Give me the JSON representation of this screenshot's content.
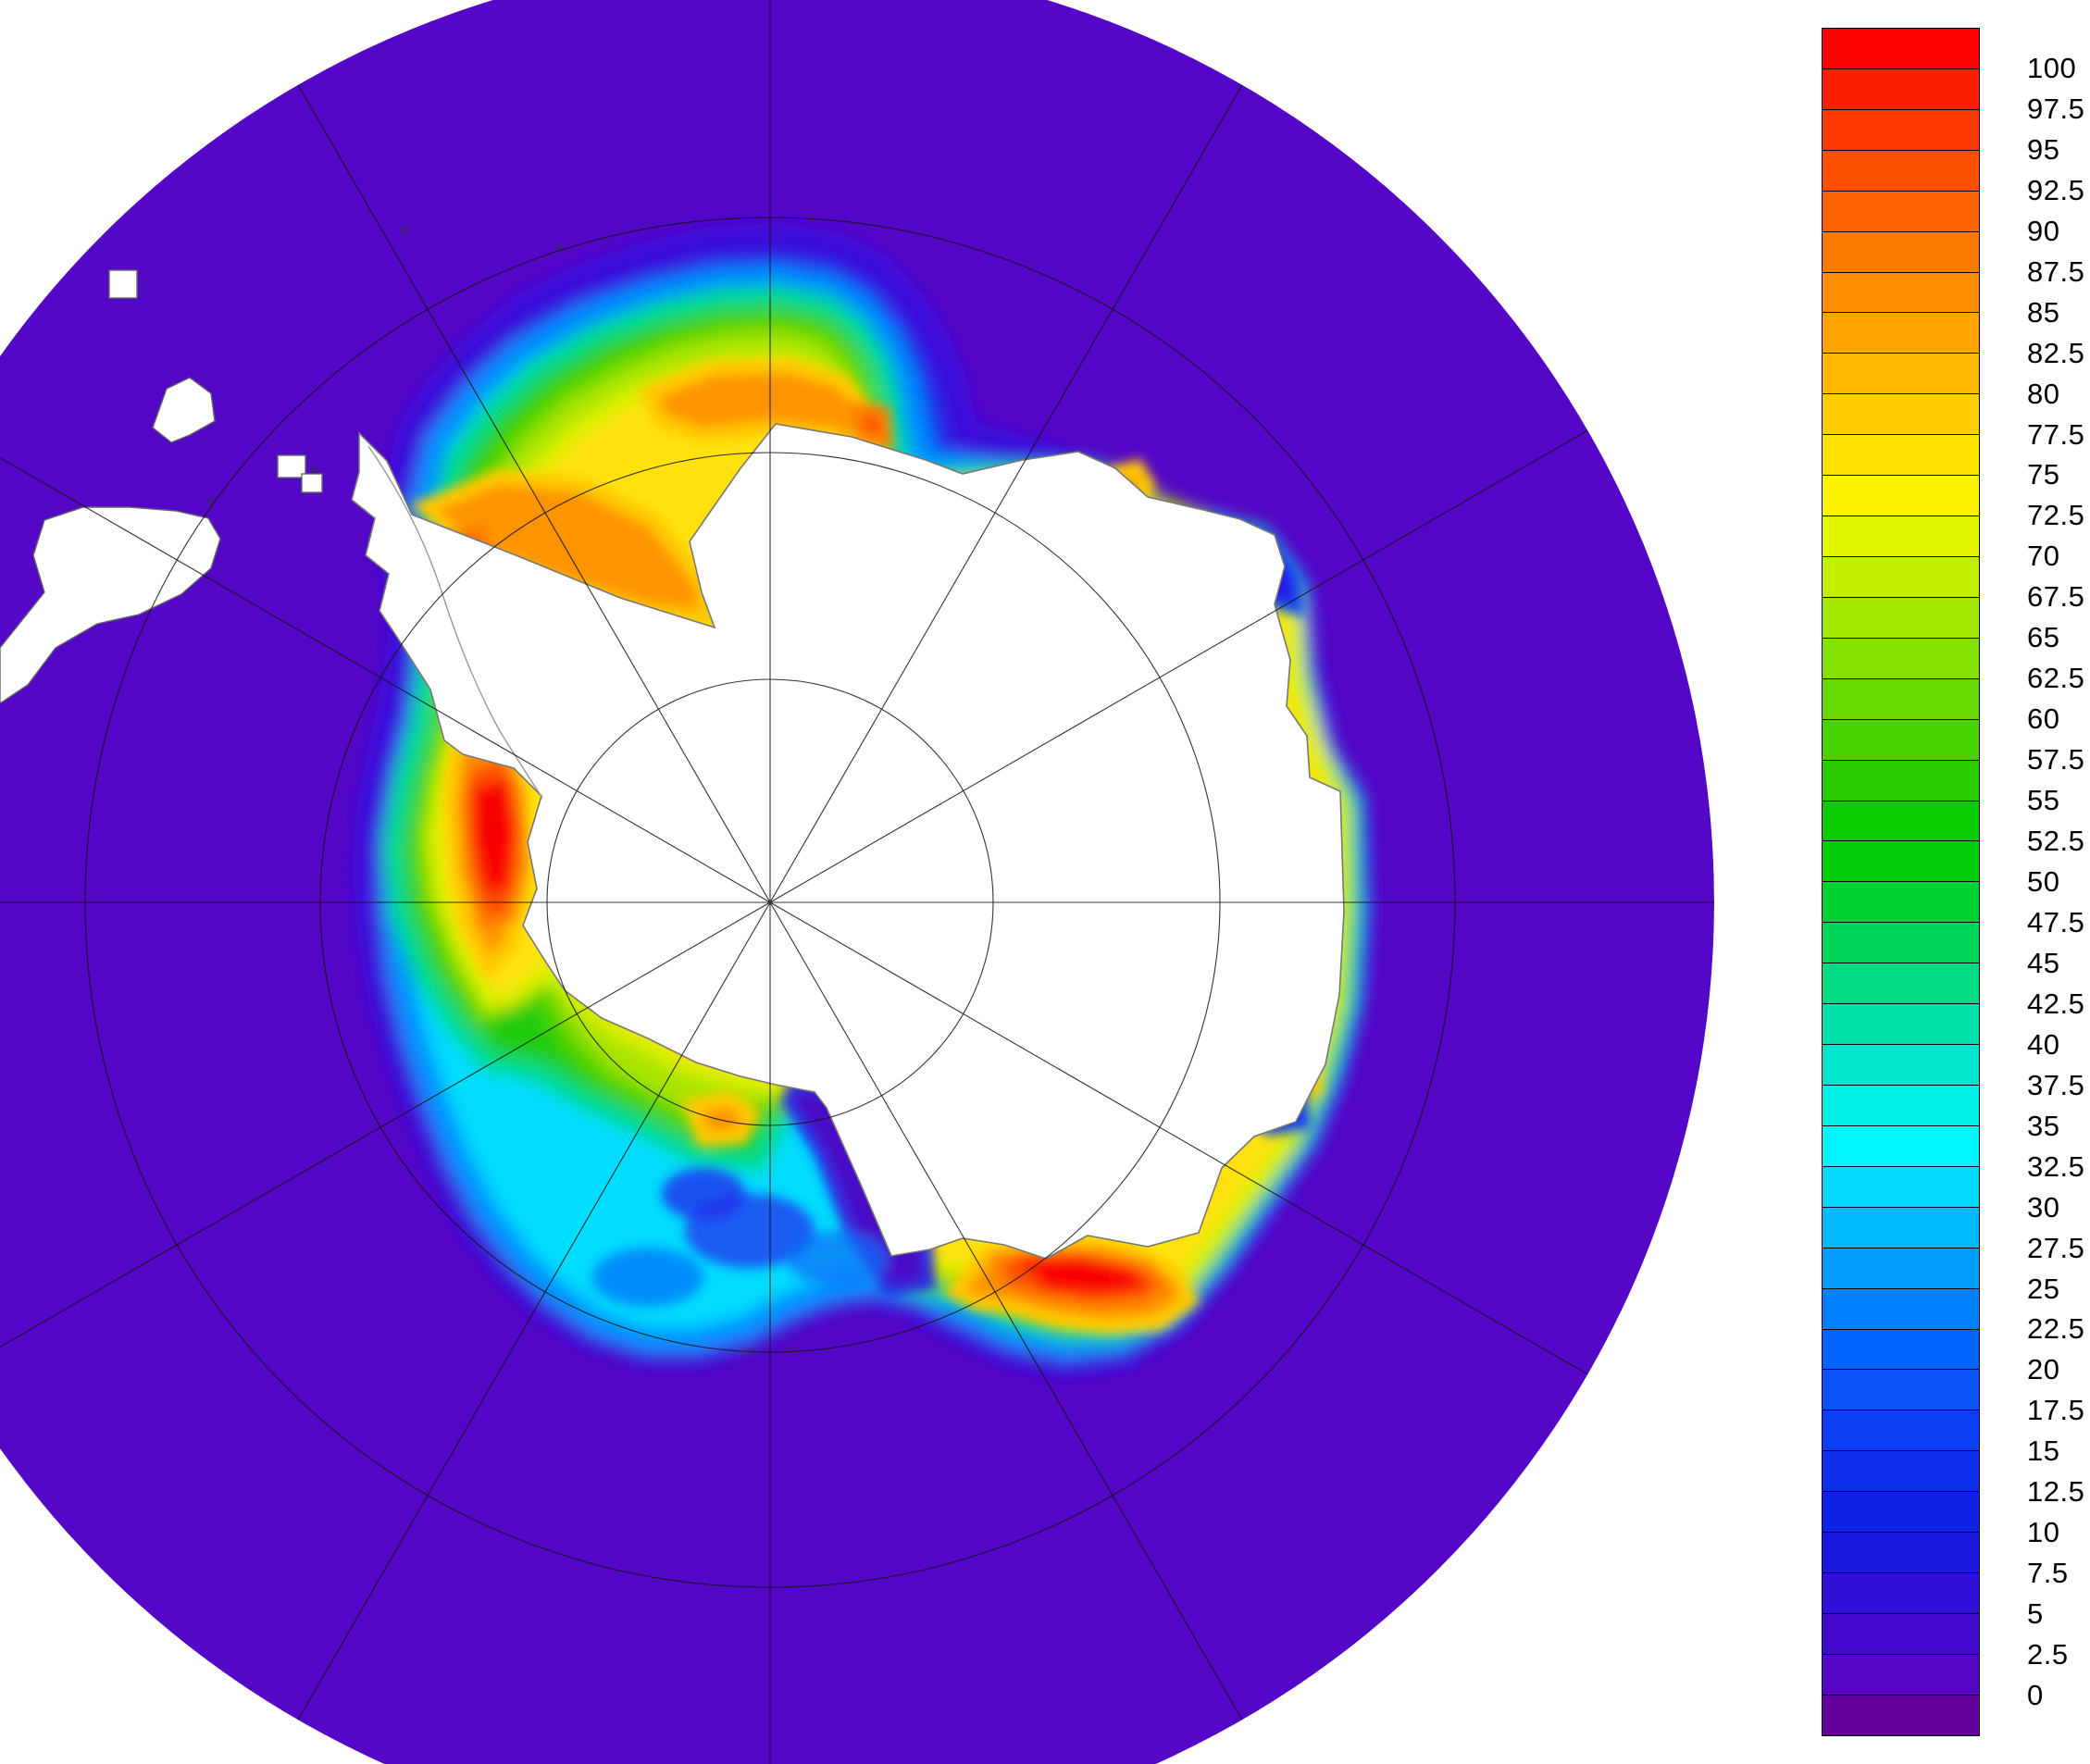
{
  "chart_data": {
    "type": "heatmap",
    "title": "",
    "value_range": [
      0,
      100
    ],
    "tick_step": 2.5,
    "legend_position": "right",
    "colorbar_ticks": [
      "100",
      "97.5",
      "95",
      "92.5",
      "90",
      "87.5",
      "85",
      "82.5",
      "80",
      "77.5",
      "75",
      "72.5",
      "70",
      "67.5",
      "65",
      "62.5",
      "60",
      "57.5",
      "55",
      "52.5",
      "50",
      "47.5",
      "45",
      "42.5",
      "40",
      "37.5",
      "35",
      "32.5",
      "30",
      "27.5",
      "25",
      "22.5",
      "20",
      "17.5",
      "15",
      "12.5",
      "10",
      "7.5",
      "5",
      "2.5",
      "0"
    ]
  },
  "colorbar": {
    "segment_colors": [
      "#FA0000",
      "#FB1E00",
      "#FC3700",
      "#FD4F00",
      "#FD6400",
      "#FE7900",
      "#FE8E00",
      "#FFA300",
      "#FFB800",
      "#FFCD00",
      "#FFE200",
      "#FDF500",
      "#E2F600",
      "#C3EF00",
      "#A4E800",
      "#85E100",
      "#66DA00",
      "#47D300",
      "#28CC00",
      "#0ACC00",
      "#00CE0A",
      "#00D232",
      "#00D75A",
      "#00DC82",
      "#00E1AA",
      "#00E6CC",
      "#00F2E6",
      "#00F6FF",
      "#00D8FF",
      "#00BAFF",
      "#009CFF",
      "#0080FF",
      "#0064FF",
      "#0A52FA",
      "#0B40F2",
      "#0C30EA",
      "#0D22E2",
      "#1A18DC",
      "#2E10D6",
      "#4409CE",
      "#5606C4",
      "#65009B"
    ]
  },
  "map": {
    "ocean_color": "#5407C6",
    "land_color": "#FFFFFF",
    "coastline_color": "#777777",
    "graticule_color": "#111111"
  }
}
